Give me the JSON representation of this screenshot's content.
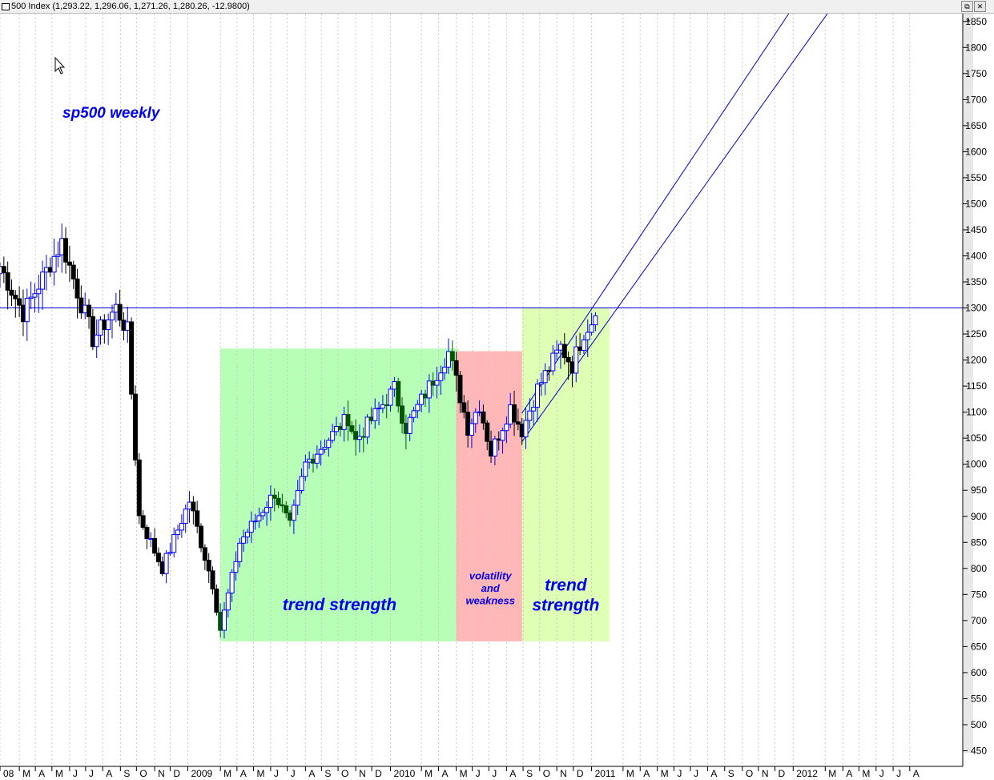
{
  "window": {
    "title": "500 Index (1,293.22, 1,296.06, 1,271.26, 1,280.26, -12.9800)",
    "restore_glyph": "⧉",
    "close_glyph": "✕",
    "scroll_up_glyph": "▲"
  },
  "chart_data": {
    "type": "candlestick",
    "title": "sp500 weekly",
    "last_ohlc": {
      "open": 1293.22,
      "high": 1296.06,
      "low": 1271.26,
      "close": 1280.26,
      "change": -12.98
    },
    "y_axis": {
      "range": [
        420,
        1865
      ],
      "ticks": [
        450,
        500,
        550,
        600,
        650,
        700,
        750,
        800,
        850,
        900,
        950,
        1000,
        1050,
        1100,
        1150,
        1200,
        1250,
        1300,
        1350,
        1400,
        1450,
        1500,
        1550,
        1600,
        1650,
        1700,
        1750,
        1800,
        1850
      ],
      "position": "right"
    },
    "x_axis": {
      "range": [
        "2008-01-28",
        "2012-11-05"
      ],
      "labels": [
        {
          "text": "08",
          "date": "2008-01-28"
        },
        {
          "text": "M",
          "date": "2008-03-03"
        },
        {
          "text": "A",
          "date": "2008-04-01"
        },
        {
          "text": "M",
          "date": "2008-05-01"
        },
        {
          "text": "J",
          "date": "2008-06-02"
        },
        {
          "text": "J",
          "date": "2008-07-01"
        },
        {
          "text": "A",
          "date": "2008-08-01"
        },
        {
          "text": "S",
          "date": "2008-09-02"
        },
        {
          "text": "O",
          "date": "2008-10-01"
        },
        {
          "text": "N",
          "date": "2008-11-03"
        },
        {
          "text": "D",
          "date": "2008-12-01"
        },
        {
          "text": "2009",
          "date": "2009-01-02"
        },
        {
          "text": "M",
          "date": "2009-03-02"
        },
        {
          "text": "A",
          "date": "2009-04-01"
        },
        {
          "text": "M",
          "date": "2009-05-01"
        },
        {
          "text": "J",
          "date": "2009-06-01"
        },
        {
          "text": "J",
          "date": "2009-07-01"
        },
        {
          "text": "A",
          "date": "2009-08-03"
        },
        {
          "text": "S",
          "date": "2009-09-01"
        },
        {
          "text": "O",
          "date": "2009-10-01"
        },
        {
          "text": "N",
          "date": "2009-11-02"
        },
        {
          "text": "D",
          "date": "2009-12-01"
        },
        {
          "text": "2010",
          "date": "2010-01-04"
        },
        {
          "text": "M",
          "date": "2010-03-01"
        },
        {
          "text": "A",
          "date": "2010-04-01"
        },
        {
          "text": "M",
          "date": "2010-05-03"
        },
        {
          "text": "J",
          "date": "2010-06-01"
        },
        {
          "text": "J",
          "date": "2010-07-01"
        },
        {
          "text": "A",
          "date": "2010-08-02"
        },
        {
          "text": "S",
          "date": "2010-09-01"
        },
        {
          "text": "O",
          "date": "2010-10-01"
        },
        {
          "text": "N",
          "date": "2010-11-01"
        },
        {
          "text": "D",
          "date": "2010-12-01"
        },
        {
          "text": "2011",
          "date": "2011-01-03"
        },
        {
          "text": "M",
          "date": "2011-03-01"
        },
        {
          "text": "A",
          "date": "2011-04-01"
        },
        {
          "text": "M",
          "date": "2011-05-02"
        },
        {
          "text": "J",
          "date": "2011-06-01"
        },
        {
          "text": "J",
          "date": "2011-07-01"
        },
        {
          "text": "A",
          "date": "2011-08-01"
        },
        {
          "text": "S",
          "date": "2011-09-01"
        },
        {
          "text": "O",
          "date": "2011-10-03"
        },
        {
          "text": "N",
          "date": "2011-11-01"
        },
        {
          "text": "D",
          "date": "2011-12-01"
        },
        {
          "text": "2012",
          "date": "2012-01-03"
        },
        {
          "text": "M",
          "date": "2012-03-01"
        },
        {
          "text": "A",
          "date": "2012-04-02"
        },
        {
          "text": "M",
          "date": "2012-05-01"
        },
        {
          "text": "J",
          "date": "2012-06-01"
        },
        {
          "text": "J",
          "date": "2012-07-02"
        },
        {
          "text": "A",
          "date": "2012-08-01"
        }
      ]
    },
    "grid": true,
    "key_points": [
      {
        "date": "2008-01-28",
        "close": 1380
      },
      {
        "date": "2008-03-10",
        "close": 1290
      },
      {
        "date": "2008-05-19",
        "close": 1426
      },
      {
        "date": "2008-07-14",
        "close": 1240
      },
      {
        "date": "2008-08-25",
        "close": 1300
      },
      {
        "date": "2008-09-15",
        "close": 1255
      },
      {
        "date": "2008-10-06",
        "close": 900
      },
      {
        "date": "2008-11-17",
        "close": 800
      },
      {
        "date": "2009-01-05",
        "close": 930
      },
      {
        "date": "2009-02-16",
        "close": 770
      },
      {
        "date": "2009-03-02",
        "close": 683
      },
      {
        "date": "2009-04-06",
        "close": 850
      },
      {
        "date": "2009-06-08",
        "close": 945
      },
      {
        "date": "2009-07-06",
        "close": 880
      },
      {
        "date": "2009-08-03",
        "close": 1000
      },
      {
        "date": "2009-10-19",
        "close": 1090
      },
      {
        "date": "2009-11-02",
        "close": 1045
      },
      {
        "date": "2010-01-11",
        "close": 1145
      },
      {
        "date": "2010-02-01",
        "close": 1070
      },
      {
        "date": "2010-04-19",
        "close": 1215
      },
      {
        "date": "2010-05-10",
        "close": 1130
      },
      {
        "date": "2010-05-24",
        "close": 1070
      },
      {
        "date": "2010-06-14",
        "close": 1115
      },
      {
        "date": "2010-07-05",
        "close": 1022
      },
      {
        "date": "2010-08-09",
        "close": 1110
      },
      {
        "date": "2010-08-30",
        "close": 1065
      },
      {
        "date": "2010-09-27",
        "close": 1145
      },
      {
        "date": "2010-11-08",
        "close": 1225
      },
      {
        "date": "2010-11-29",
        "close": 1190
      },
      {
        "date": "2010-12-20",
        "close": 1255
      },
      {
        "date": "2011-01-10",
        "close": 1285
      }
    ],
    "horizontal_line": {
      "value": 1300
    },
    "trend_channel": {
      "upper": [
        {
          "date": "2010-08-30",
          "value": 1098
        },
        {
          "date": "2011-12-26",
          "value": 1865
        }
      ],
      "lower": [
        {
          "date": "2010-08-30",
          "value": 1043
        },
        {
          "date": "2012-03-05",
          "value": 1865
        }
      ]
    },
    "shaded_regions": [
      {
        "start": "2009-03-02",
        "end": "2010-04-26",
        "low": 660,
        "high": 1222,
        "color": "#b3ffb3",
        "label": "trend strength"
      },
      {
        "start": "2010-05-03",
        "end": "2010-08-23",
        "low": 660,
        "high": 1217,
        "color": "#ffb3b3",
        "label": "volatility\nand\nweakness"
      },
      {
        "start": "2010-08-30",
        "end": "2011-01-24",
        "low": 660,
        "high": 1300,
        "color": "#ddffb0",
        "label": "trend\nstrength"
      }
    ],
    "colors": {
      "up_candle": "#0000ff",
      "down_candle": "#000000",
      "down_candle_green_zone": "#005500",
      "annotation": "#0000ee",
      "grid": "#c8c8c8"
    }
  }
}
